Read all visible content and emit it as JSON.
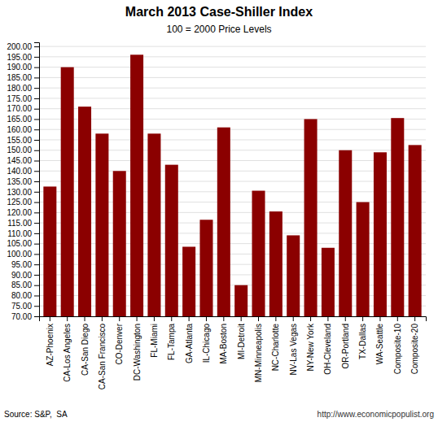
{
  "chart_data": {
    "type": "bar",
    "title": "March 2013 Case-Shiller Index",
    "subtitle": "100 = 2000 Price Levels",
    "categories": [
      "AZ-Phoenix",
      "CA-Los Angeles",
      "CA-San Diego",
      "CA-San Francisco",
      "CO-Denver",
      "DC-Washington",
      "FL-Miami",
      "FL-Tampa",
      "GA-Atlanta",
      "IL-Chicago",
      "MA-Boston",
      "MI-Detroit",
      "MN-Minneapolis",
      "NC-Charlotte",
      "NV-Las Vegas",
      "NY-New York",
      "OH-Cleveland",
      "OR-Portland",
      "TX-Dallas",
      "WA-Seattle",
      "Composite-10",
      "Composite-20"
    ],
    "values": [
      132.5,
      190.0,
      171.0,
      158.0,
      140.0,
      196.0,
      158.0,
      143.0,
      103.5,
      116.5,
      161.0,
      85.0,
      130.5,
      120.5,
      109.0,
      165.0,
      103.0,
      150.0,
      125.0,
      149.0,
      165.5,
      152.5
    ],
    "color": "#8B0000",
    "ylim": [
      70,
      202
    ],
    "yticks": [
      {
        "value": 70,
        "label": "70.00"
      },
      {
        "value": 75,
        "label": "75.00"
      },
      {
        "value": 80,
        "label": "80.00"
      },
      {
        "value": 85,
        "label": "85.00"
      },
      {
        "value": 90,
        "label": "90.00"
      },
      {
        "value": 95,
        "label": "95.00"
      },
      {
        "value": 100,
        "label": "100.00"
      },
      {
        "value": 105,
        "label": "105.00"
      },
      {
        "value": 110,
        "label": "110.00"
      },
      {
        "value": 115,
        "label": "115.00"
      },
      {
        "value": 120,
        "label": "120.00"
      },
      {
        "value": 125,
        "label": "125.00"
      },
      {
        "value": 130,
        "label": "130.00"
      },
      {
        "value": 135,
        "label": "135.00"
      },
      {
        "value": 140,
        "label": "140.00"
      },
      {
        "value": 145,
        "label": "145.00"
      },
      {
        "value": 150,
        "label": "150.00"
      },
      {
        "value": 155,
        "label": "155.00"
      },
      {
        "value": 160,
        "label": "160.00"
      },
      {
        "value": 165,
        "label": "165.00"
      },
      {
        "value": 170,
        "label": "170.00"
      },
      {
        "value": 175,
        "label": "175.00"
      },
      {
        "value": 180,
        "label": "180.00"
      },
      {
        "value": 185,
        "label": "185.00"
      },
      {
        "value": 190,
        "label": "190.00"
      },
      {
        "value": 195,
        "label": "195.00"
      },
      {
        "value": 200,
        "label": "200.00"
      }
    ],
    "grid": true,
    "annotations": [
      "Source: S&P,  SA",
      "http://www.economicpopulist.org"
    ]
  }
}
